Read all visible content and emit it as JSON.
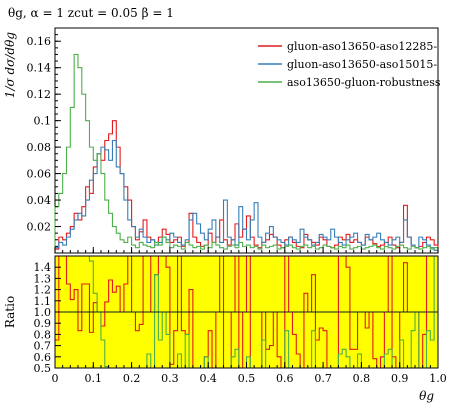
{
  "chart_data": {
    "type": "line",
    "title": "θg, α = 1 zcut = 0.05 β = 1",
    "xlabel": "θg",
    "ylabel": "1/σ dσ/dθg",
    "ratio_label": "Ratio",
    "xlim": [
      0,
      1
    ],
    "ylim": [
      0,
      0.17
    ],
    "ratio_ylim": [
      0.5,
      1.5
    ],
    "x_ticks": [
      0,
      0.1,
      0.2,
      0.3,
      0.4,
      0.5,
      0.6,
      0.7,
      0.8,
      0.9,
      1.0
    ],
    "x_tick_labels": [
      "0",
      "0.1",
      "0.2",
      "0.3",
      "0.4",
      "0.5",
      "0.6",
      "0.7",
      "0.8",
      "0.9",
      "1.0"
    ],
    "y_ticks": [
      0.02,
      0.04,
      0.06,
      0.08,
      0.1,
      0.12,
      0.14,
      0.16
    ],
    "y_tick_labels": [
      "0.02",
      "0.04",
      "0.06",
      "0.08",
      "0.1",
      "0.12",
      "0.14",
      "0.16"
    ],
    "ratio_ticks": [
      0.5,
      0.6,
      0.7,
      0.8,
      0.9,
      1.0,
      1.1,
      1.2,
      1.3,
      1.4
    ],
    "ratio_tick_labels": [
      "0.5",
      "0.6",
      "0.7",
      "0.8",
      "0.9",
      "1.0",
      "1.1",
      "1.2",
      "1.3",
      "1.4"
    ],
    "bin_width": 0.01,
    "series": [
      {
        "name": "gluon-aso13650-aso12285-",
        "color": "#e41a1c",
        "values": [
          0.003,
          0.012,
          0.01,
          0.015,
          0.02,
          0.03,
          0.025,
          0.035,
          0.05,
          0.045,
          0.065,
          0.075,
          0.07,
          0.085,
          0.09,
          0.1,
          0.08,
          0.06,
          0.05,
          0.04,
          0.02,
          0.01,
          0.016,
          0.025,
          0.012,
          0.01,
          0.008,
          0.012,
          0.018,
          0.014,
          0.008,
          0.01,
          0.012,
          0.005,
          0.008,
          0.03,
          0.012,
          0.008,
          0.005,
          0.006,
          0.015,
          0.008,
          0.012,
          0.025,
          0.01,
          0.006,
          0.01,
          0.022,
          0.012,
          0.018,
          0.028,
          0.012,
          0.006,
          0.004,
          0.008,
          0.01,
          0.014,
          0.012,
          0.006,
          0.004,
          0.01,
          0.012,
          0.008,
          0.005,
          0.004,
          0.014,
          0.01,
          0.008,
          0.006,
          0.012,
          0.01,
          0.005,
          0.004,
          0.006,
          0.012,
          0.01,
          0.014,
          0.008,
          0.01,
          0.008,
          0.006,
          0.012,
          0.01,
          0.007,
          0.005,
          0.006,
          0.008,
          0.012,
          0.006,
          0.004,
          0.008,
          0.036,
          0.012,
          0.006,
          0.004,
          0.005,
          0.008,
          0.012,
          0.01,
          0.006
        ]
      },
      {
        "name": "gluon-aso13650-aso15015-",
        "color": "#377eb8",
        "values": [
          0.004,
          0.008,
          0.006,
          0.012,
          0.018,
          0.025,
          0.03,
          0.028,
          0.04,
          0.055,
          0.06,
          0.075,
          0.08,
          0.078,
          0.07,
          0.085,
          0.065,
          0.06,
          0.04,
          0.025,
          0.02,
          0.012,
          0.018,
          0.012,
          0.008,
          0.01,
          0.006,
          0.008,
          0.012,
          0.01,
          0.015,
          0.012,
          0.008,
          0.006,
          0.01,
          0.025,
          0.03,
          0.022,
          0.015,
          0.01,
          0.018,
          0.025,
          0.012,
          0.008,
          0.04,
          0.012,
          0.01,
          0.006,
          0.035,
          0.018,
          0.01,
          0.025,
          0.038,
          0.012,
          0.008,
          0.015,
          0.02,
          0.012,
          0.01,
          0.008,
          0.006,
          0.012,
          0.01,
          0.008,
          0.018,
          0.012,
          0.01,
          0.006,
          0.008,
          0.014,
          0.012,
          0.01,
          0.018,
          0.012,
          0.008,
          0.006,
          0.01,
          0.012,
          0.015,
          0.008,
          0.006,
          0.014,
          0.01,
          0.012,
          0.015,
          0.01,
          0.008,
          0.006,
          0.01,
          0.012,
          0.008,
          0.025,
          0.012,
          0.006,
          0.004,
          0.012,
          0.01,
          0.006,
          0.004,
          0.002
        ]
      },
      {
        "name": "aso13650-gluon-robustness",
        "color": "#4daf4a",
        "values": [
          0.035,
          0.045,
          0.06,
          0.08,
          0.11,
          0.15,
          0.14,
          0.12,
          0.1,
          0.08,
          0.07,
          0.075,
          0.06,
          0.04,
          0.03,
          0.02,
          0.015,
          0.01,
          0.008,
          0.012,
          0.006,
          0.004,
          0.008,
          0.006,
          0.005,
          0.004,
          0.008,
          0.006,
          0.012,
          0.008,
          0.004,
          0.006,
          0.005,
          0.003,
          0.008,
          0.006,
          0.004,
          0.005,
          0.003,
          0.006,
          0.004,
          0.008,
          0.006,
          0.004,
          0.003,
          0.005,
          0.006,
          0.004,
          0.008,
          0.005,
          0.006,
          0.004,
          0.005,
          0.003,
          0.006,
          0.004,
          0.005,
          0.006,
          0.003,
          0.004,
          0.005,
          0.006,
          0.004,
          0.003,
          0.005,
          0.006,
          0.004,
          0.005,
          0.003,
          0.004,
          0.006,
          0.005,
          0.004,
          0.003,
          0.005,
          0.004,
          0.006,
          0.003,
          0.004,
          0.005,
          0.003,
          0.004,
          0.005,
          0.006,
          0.004,
          0.003,
          0.005,
          0.004,
          0.003,
          0.005,
          0.006,
          0.004,
          0.003,
          0.005,
          0.004,
          0.003,
          0.004,
          0.005,
          0.003,
          0.004
        ]
      }
    ],
    "ratio_band_color": "#ffff00",
    "legend_position": "top-right"
  }
}
